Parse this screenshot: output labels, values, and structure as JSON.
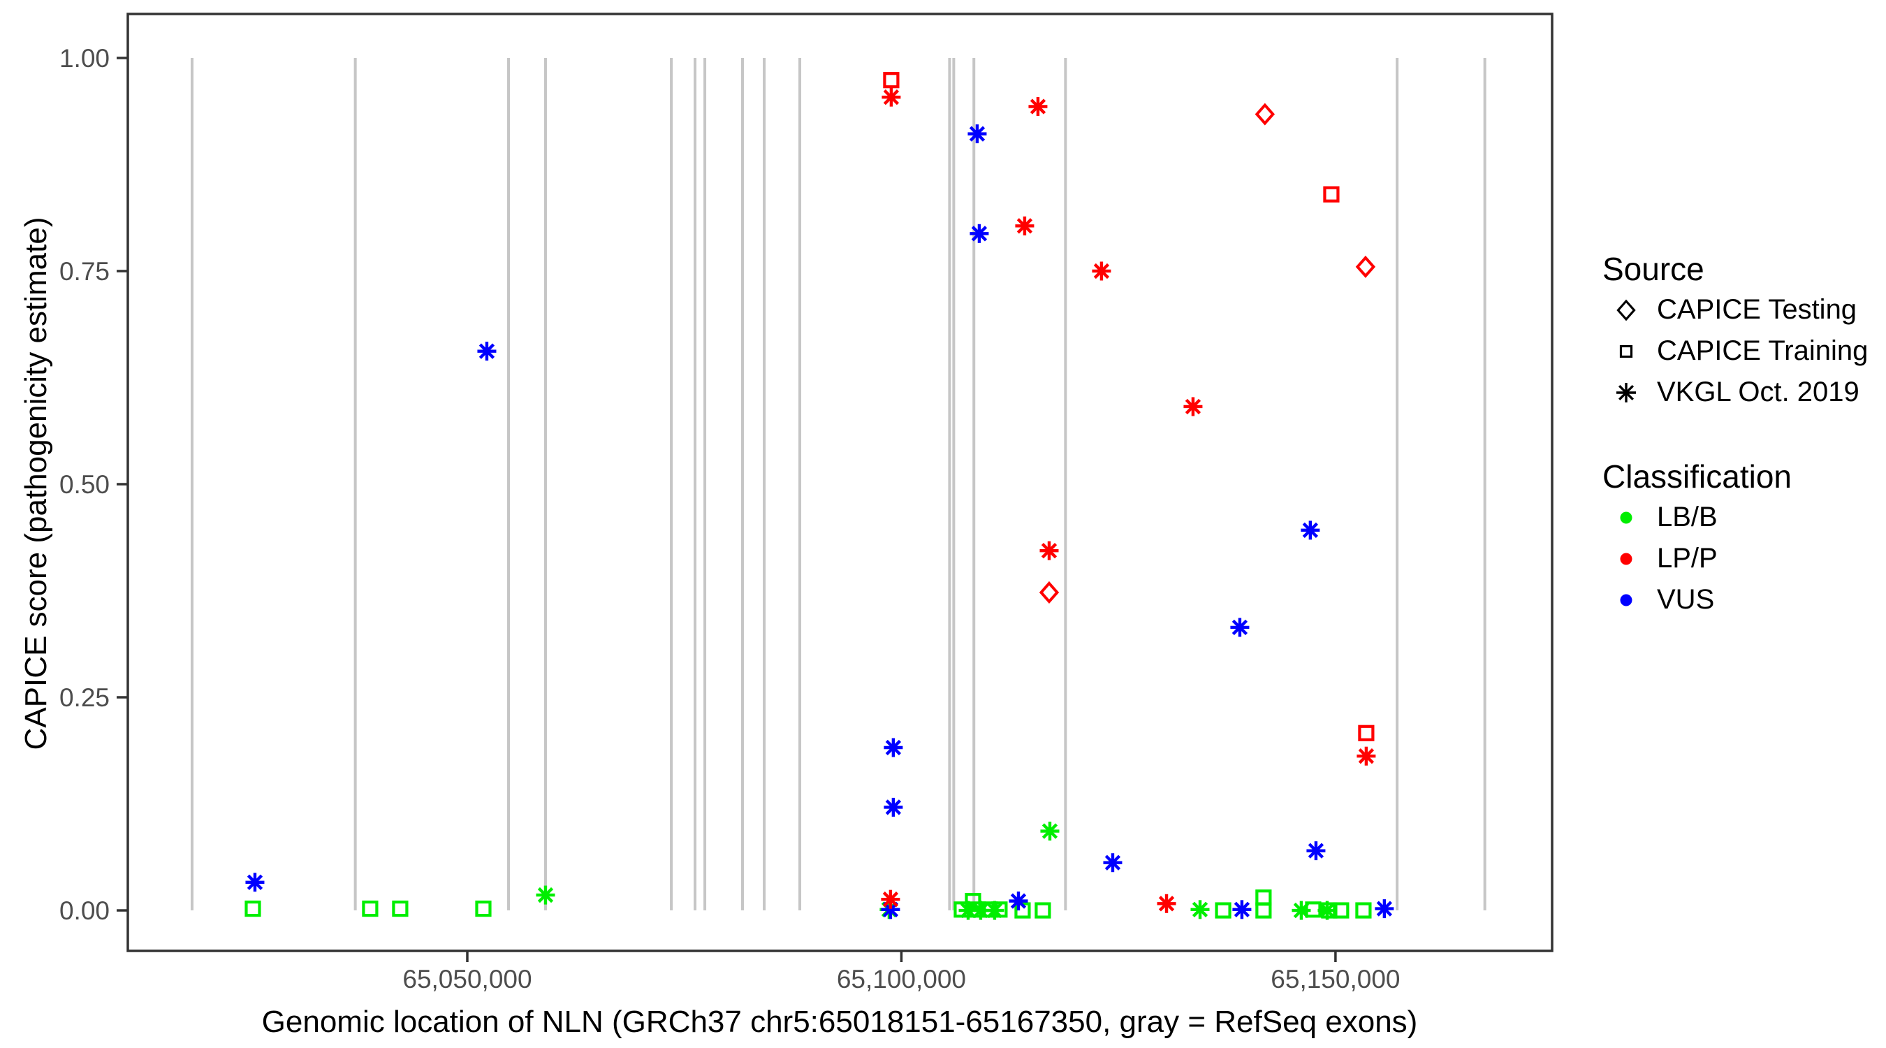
{
  "chart_data": {
    "type": "scatter",
    "title": "",
    "xlabel": "Genomic location of NLN (GRCh37 chr5:65018151-65167350, gray = RefSeq exons)",
    "ylabel": "CAPICE score (pathogenicity estimate)",
    "x_domain": [
      65010900,
      65174950
    ],
    "y_domain": [
      -0.0475,
      1.0516
    ],
    "x_ticks": [
      {
        "value": 65050000,
        "label": "65,050,000"
      },
      {
        "value": 65100000,
        "label": "65,100,000"
      },
      {
        "value": 65150000,
        "label": "65,150,000"
      }
    ],
    "y_ticks": [
      {
        "value": 0.0,
        "label": "0.00"
      },
      {
        "value": 0.25,
        "label": "0.25"
      },
      {
        "value": 0.5,
        "label": "0.50"
      },
      {
        "value": 0.75,
        "label": "0.75"
      },
      {
        "value": 1.0,
        "label": "1.00"
      }
    ],
    "grid": false,
    "legend_position": "right",
    "exon_note": "gray vertical lines = RefSeq exons, drawn from score 0 to score 1",
    "exon_positions": [
      65018300,
      65037100,
      65054750,
      65059010,
      65073500,
      65076230,
      65077360,
      65081700,
      65084200,
      65088300,
      65105550,
      65106030,
      65108350,
      65118900,
      65157100,
      65167200
    ],
    "classification_colors": {
      "LB/B": "#00ee00",
      "LP/P": "#ff0000",
      "VUS": "#0000ff"
    },
    "style_colors": {
      "exon_line": "#c6c6c6",
      "panel_border": "#333333",
      "tick_text": "#4d4d4d"
    },
    "series": [
      {
        "name": "CAPICE Testing",
        "symbol": "diamond",
        "points": [
          {
            "x": 65141870,
            "y": 0.934,
            "class": "LP/P"
          },
          {
            "x": 65153460,
            "y": 0.755,
            "class": "LP/P"
          },
          {
            "x": 65117020,
            "y": 0.373,
            "class": "LP/P"
          }
        ]
      },
      {
        "name": "CAPICE Training",
        "symbol": "square",
        "points": [
          {
            "x": 65025300,
            "y": 0.002,
            "class": "LB/B"
          },
          {
            "x": 65038810,
            "y": 0.002,
            "class": "LB/B"
          },
          {
            "x": 65042270,
            "y": 0.002,
            "class": "LB/B"
          },
          {
            "x": 65051850,
            "y": 0.002,
            "class": "LB/B"
          },
          {
            "x": 65106960,
            "y": 0.001,
            "class": "LB/B"
          },
          {
            "x": 65108250,
            "y": 0.011,
            "class": "LB/B"
          },
          {
            "x": 65108810,
            "y": 0.001,
            "class": "LB/B"
          },
          {
            "x": 65110180,
            "y": 0.001,
            "class": "LB/B"
          },
          {
            "x": 65111300,
            "y": 0.001,
            "class": "LB/B"
          },
          {
            "x": 65113960,
            "y": 0.0,
            "class": "LB/B"
          },
          {
            "x": 65116290,
            "y": 0.0,
            "class": "LB/B"
          },
          {
            "x": 65137060,
            "y": 0.0,
            "class": "LB/B"
          },
          {
            "x": 65141710,
            "y": 0.015,
            "class": "LB/B"
          },
          {
            "x": 65141710,
            "y": 0.0,
            "class": "LB/B"
          },
          {
            "x": 65147430,
            "y": 0.001,
            "class": "LB/B"
          },
          {
            "x": 65149280,
            "y": 0.0,
            "class": "LB/B"
          },
          {
            "x": 65150640,
            "y": 0.0,
            "class": "LB/B"
          },
          {
            "x": 65153220,
            "y": 0.0,
            "class": "LB/B"
          },
          {
            "x": 65098830,
            "y": 0.974,
            "class": "LP/P"
          },
          {
            "x": 65149520,
            "y": 0.84,
            "class": "LP/P"
          },
          {
            "x": 65153540,
            "y": 0.208,
            "class": "LP/P"
          }
        ]
      },
      {
        "name": "VKGL Oct. 2019",
        "symbol": "asterisk",
        "points": [
          {
            "x": 65059010,
            "y": 0.018,
            "class": "LB/B"
          },
          {
            "x": 65098590,
            "y": 0.001,
            "class": "LB/B"
          },
          {
            "x": 65107690,
            "y": 0.0,
            "class": "LB/B"
          },
          {
            "x": 65109130,
            "y": 0.0,
            "class": "LB/B"
          },
          {
            "x": 65110740,
            "y": 0.0,
            "class": "LB/B"
          },
          {
            "x": 65117100,
            "y": 0.093,
            "class": "LB/B"
          },
          {
            "x": 65134400,
            "y": 0.001,
            "class": "LB/B"
          },
          {
            "x": 65146060,
            "y": 0.0,
            "class": "LB/B"
          },
          {
            "x": 65149040,
            "y": 0.0,
            "class": "LB/B"
          },
          {
            "x": 65025540,
            "y": 0.033,
            "class": "VUS"
          },
          {
            "x": 65052250,
            "y": 0.656,
            "class": "VUS"
          },
          {
            "x": 65098750,
            "y": 0.001,
            "class": "VUS"
          },
          {
            "x": 65099070,
            "y": 0.121,
            "class": "VUS"
          },
          {
            "x": 65099070,
            "y": 0.191,
            "class": "VUS"
          },
          {
            "x": 65108730,
            "y": 0.911,
            "class": "VUS"
          },
          {
            "x": 65108970,
            "y": 0.794,
            "class": "VUS"
          },
          {
            "x": 65113480,
            "y": 0.011,
            "class": "VUS"
          },
          {
            "x": 65124340,
            "y": 0.056,
            "class": "VUS"
          },
          {
            "x": 65138980,
            "y": 0.332,
            "class": "VUS"
          },
          {
            "x": 65139220,
            "y": 0.001,
            "class": "VUS"
          },
          {
            "x": 65147100,
            "y": 0.446,
            "class": "VUS"
          },
          {
            "x": 65147750,
            "y": 0.07,
            "class": "VUS"
          },
          {
            "x": 65155630,
            "y": 0.002,
            "class": "VUS"
          },
          {
            "x": 65098750,
            "y": 0.013,
            "class": "LP/P"
          },
          {
            "x": 65114200,
            "y": 0.803,
            "class": "LP/P"
          },
          {
            "x": 65115730,
            "y": 0.943,
            "class": "LP/P"
          },
          {
            "x": 65117020,
            "y": 0.422,
            "class": "LP/P"
          },
          {
            "x": 65123050,
            "y": 0.75,
            "class": "LP/P"
          },
          {
            "x": 65130540,
            "y": 0.008,
            "class": "LP/P"
          },
          {
            "x": 65133590,
            "y": 0.591,
            "class": "LP/P"
          },
          {
            "x": 65153540,
            "y": 0.181,
            "class": "LP/P"
          },
          {
            "x": 65098830,
            "y": 0.954,
            "class": "LP/P"
          }
        ]
      }
    ]
  },
  "legend": {
    "source": {
      "title": "Source",
      "items": [
        {
          "label": "CAPICE Testing",
          "symbol": "diamond"
        },
        {
          "label": "CAPICE Training",
          "symbol": "square"
        },
        {
          "label": "VKGL Oct. 2019",
          "symbol": "asterisk"
        }
      ]
    },
    "classification": {
      "title": "Classification",
      "items": [
        {
          "label": "LB/B",
          "color": "#00ee00"
        },
        {
          "label": "LP/P",
          "color": "#ff0000"
        },
        {
          "label": "VUS",
          "color": "#0000ff"
        }
      ]
    }
  }
}
